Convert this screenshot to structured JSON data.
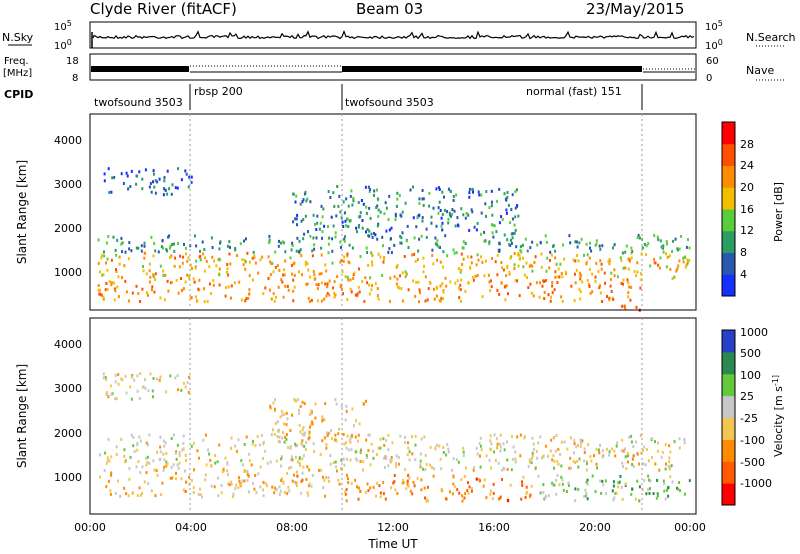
{
  "header": {
    "station": "Clyde River (fitACF)",
    "beam": "Beam 03",
    "date": "23/May/2015"
  },
  "panels": {
    "nsky": {
      "label": "N.Sky",
      "tick_top": "10^5",
      "tick_bottom": "10^0",
      "right_tick_top": "10^5",
      "right_tick_bottom": "10^0",
      "right_label": "N.Search"
    },
    "freq": {
      "label_line1": "Freq.",
      "label_line2": "[MHz]",
      "tick_top": "18",
      "tick_bottom": "8",
      "right_tick_top": "60",
      "right_tick_bottom": "0",
      "right_label": "Nave"
    },
    "cpid": {
      "label": "CPID",
      "segments": [
        {
          "label": "twofsound 3503",
          "start_hour": 0.0,
          "end_hour": 3.95
        },
        {
          "label": "rbsp 200",
          "start_hour": 3.95,
          "end_hour": 10.0
        },
        {
          "label": "twofsound 3503",
          "start_hour": 10.0,
          "end_hour": 21.95
        },
        {
          "label": "normal (fast) 151",
          "start_hour": 21.95,
          "end_hour": 24.0
        }
      ]
    }
  },
  "x_axis": {
    "label": "Time UT",
    "ticks": [
      "00:00",
      "04:00",
      "08:00",
      "12:00",
      "16:00",
      "20:00",
      "00:00"
    ]
  },
  "power_panel": {
    "ylabel": "Slant Range [km]",
    "yticks": [
      "1000",
      "2000",
      "3000",
      "4000"
    ],
    "colorbar_label": "Power [dB]",
    "colorbar_ticks": [
      "4",
      "8",
      "12",
      "16",
      "20",
      "24",
      "28"
    ],
    "colors": [
      "#1430ff",
      "#2858b0",
      "#2a9e62",
      "#5acd3c",
      "#f2be00",
      "#ff8c00",
      "#ff5000",
      "#ff0000"
    ]
  },
  "velocity_panel": {
    "ylabel": "Slant Range [km]",
    "yticks": [
      "1000",
      "2000",
      "3000",
      "4000"
    ],
    "colorbar_label": "Velocity [m s^-1]",
    "colorbar_ticks": [
      "-1000",
      "-500",
      "-100",
      "-25",
      "25",
      "100",
      "500",
      "1000"
    ],
    "colors": [
      "#ff0000",
      "#ff5a00",
      "#ff8c00",
      "#f2c650",
      "#c8c8c8",
      "#64c83c",
      "#2a8a4e",
      "#2840c8"
    ]
  },
  "chart_data": [
    {
      "type": "heatmap",
      "title": "Power",
      "xlabel": "Time UT",
      "ylabel": "Slant Range [km]",
      "xlim": [
        0,
        24
      ],
      "ylim": [
        180,
        4600
      ],
      "colorbar_label": "Power [dB]",
      "clim": [
        0,
        32
      ],
      "bands": [
        {
          "t0": 0.3,
          "t1": 21.8,
          "r0": 400,
          "r1": 900,
          "value": 22
        },
        {
          "t0": 0.3,
          "t1": 23.8,
          "r0": 900,
          "r1": 1500,
          "value": 20
        },
        {
          "t0": 0.3,
          "t1": 23.8,
          "r0": 1500,
          "r1": 1900,
          "value": 10
        },
        {
          "t0": 8.0,
          "t1": 17.0,
          "r0": 1900,
          "r1": 3000,
          "value": 8
        },
        {
          "t0": 0.5,
          "t1": 4.0,
          "r0": 2800,
          "r1": 3400,
          "value": 6
        },
        {
          "t0": 21.0,
          "t1": 22.0,
          "r0": 200,
          "r1": 400,
          "value": 28
        }
      ]
    },
    {
      "type": "heatmap",
      "title": "Velocity",
      "xlabel": "Time UT",
      "ylabel": "Slant Range [km]",
      "xlim": [
        0,
        24
      ],
      "ylim": [
        180,
        4600
      ],
      "colorbar_label": "Velocity [m s^-1]",
      "clim": [
        -1000,
        1000
      ],
      "bands": [
        {
          "t0": 0.3,
          "t1": 10.0,
          "r0": 600,
          "r1": 1200,
          "value": -150
        },
        {
          "t0": 0.3,
          "t1": 23.8,
          "r0": 1200,
          "r1": 2000,
          "value": 0
        },
        {
          "t0": 10.0,
          "t1": 17.5,
          "r0": 500,
          "r1": 1100,
          "value": -400
        },
        {
          "t0": 17.5,
          "t1": 23.8,
          "r0": 500,
          "r1": 1100,
          "value": 300
        },
        {
          "t0": 7.0,
          "t1": 11.0,
          "r0": 1800,
          "r1": 2800,
          "value": -150
        },
        {
          "t0": 0.5,
          "t1": 4.0,
          "r0": 2800,
          "r1": 3400,
          "value": 0
        }
      ]
    }
  ]
}
